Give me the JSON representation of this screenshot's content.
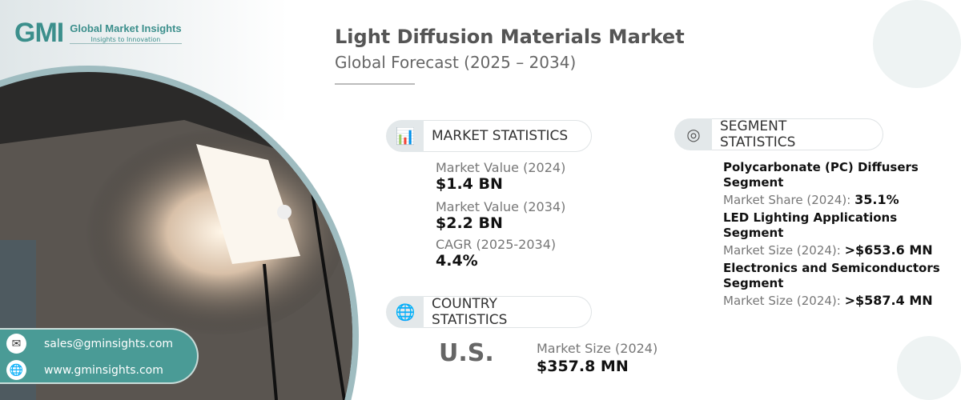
{
  "logo": {
    "mark": "GMI",
    "name": "Global Market Insights",
    "tagline": "Insights to Innovation"
  },
  "header": {
    "title": "Light Diffusion Materials Market",
    "subtitle": "Global Forecast (2025 – 2034)"
  },
  "market_statistics": {
    "label": "MARKET STATISTICS",
    "icon": "chart-globe-icon",
    "items": [
      {
        "label": "Market Value (2024)",
        "value": "$1.4 BN"
      },
      {
        "label": "Market Value (2034)",
        "value": "$2.2 BN"
      },
      {
        "label": "CAGR (2025-2034)",
        "value": "4.4%"
      }
    ]
  },
  "country_statistics": {
    "label": "COUNTRY STATISTICS",
    "icon": "globe-pin-icon",
    "country": "U.S.",
    "metric_label": "Market Size (2024)",
    "metric_value": "$357.8 MN"
  },
  "segment_statistics": {
    "label": "SEGMENT STATISTICS",
    "icon": "segment-chart-icon",
    "items": [
      {
        "name": "Polycarbonate (PC) Diffusers Segment",
        "metric": "Market Share (2024):",
        "value": "35.1%"
      },
      {
        "name": "LED Lighting Applications Segment",
        "metric": "Market Size (2024):",
        "value": ">$653.6 MN"
      },
      {
        "name": "Electronics and Semiconductors Segment",
        "metric": "Market Size (2024):",
        "value": ">$587.4 MN"
      }
    ]
  },
  "contact": {
    "email": "sales@gminsights.com",
    "website": "www.gminsights.com"
  },
  "colors": {
    "accent": "#4a9b96",
    "light_teal": "#e3eeee"
  }
}
